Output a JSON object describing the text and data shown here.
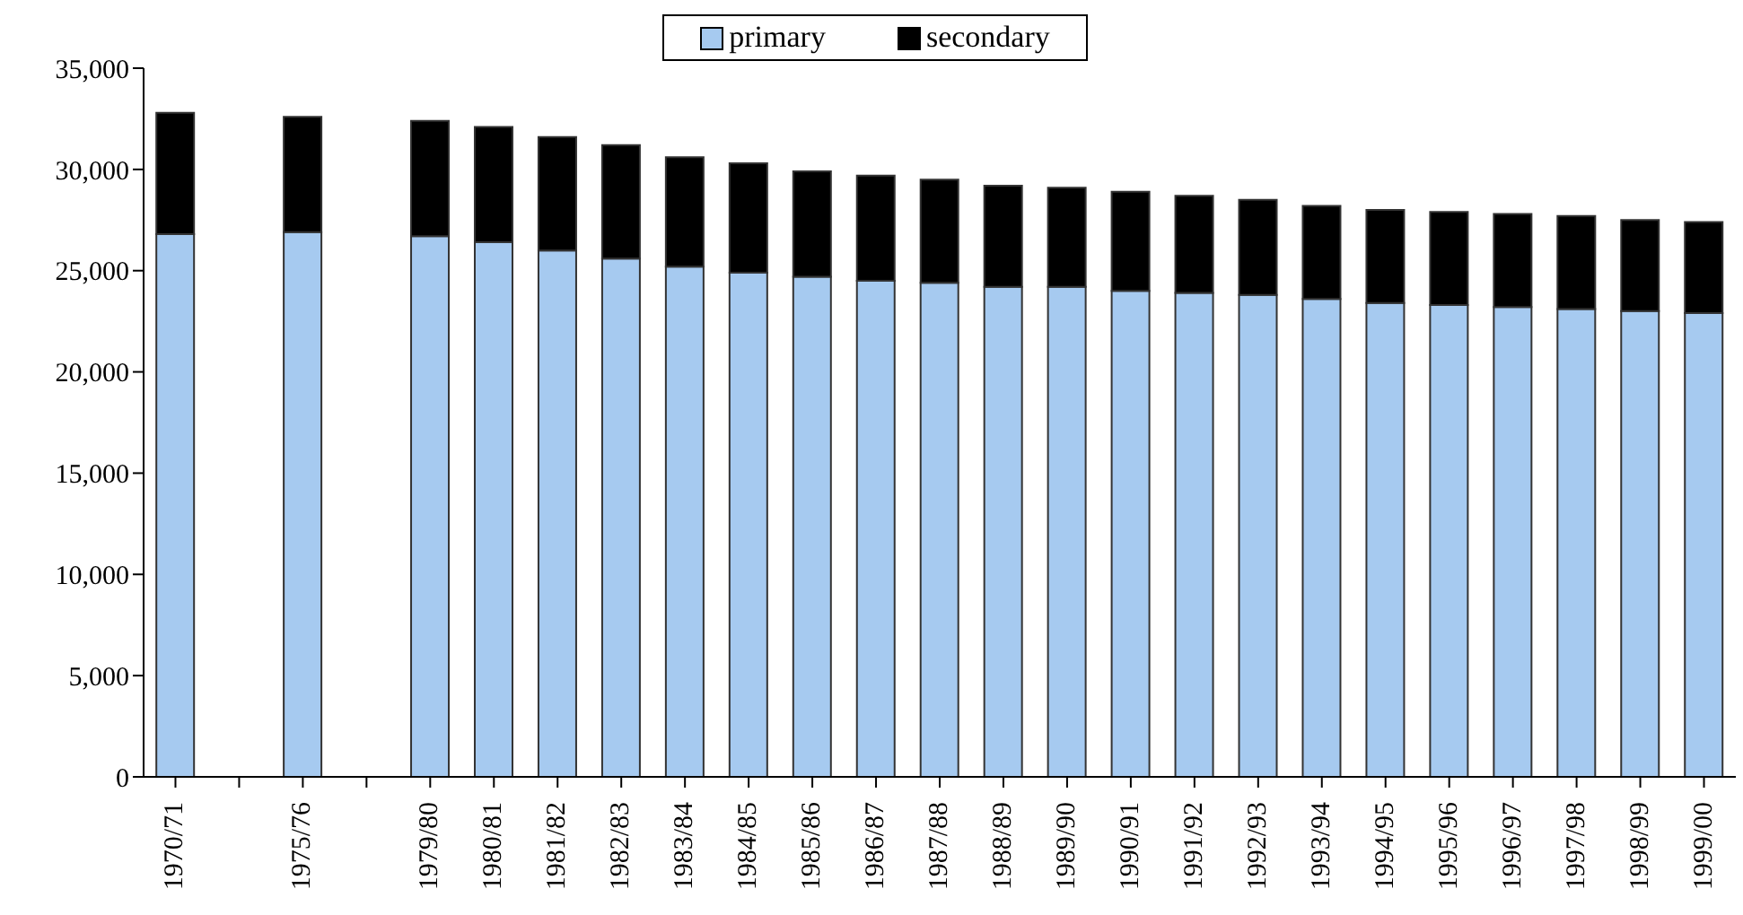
{
  "chart_data": {
    "type": "bar",
    "stacked": true,
    "legend": "top",
    "categories": [
      "1970/71",
      null,
      "1975/76",
      null,
      "1979/80",
      "1980/81",
      "1981/82",
      "1982/83",
      "1983/84",
      "1984/85",
      "1985/86",
      "1986/87",
      "1987/88",
      "1988/89",
      "1989/90",
      "1990/91",
      "1991/92",
      "1992/93",
      "1993/94",
      "1994/95",
      "1995/96",
      "1996/97",
      "1997/98",
      "1998/99",
      "1999/00"
    ],
    "series": [
      {
        "name": "primary",
        "color": "#a6caf0",
        "values": [
          26800,
          null,
          26900,
          null,
          26700,
          26400,
          26000,
          25600,
          25200,
          24900,
          24700,
          24500,
          24400,
          24200,
          24200,
          24000,
          23900,
          23800,
          23600,
          23400,
          23300,
          23200,
          23100,
          23000,
          22900
        ]
      },
      {
        "name": "secondary",
        "color": "#000000",
        "values": [
          6000,
          null,
          5700,
          null,
          5700,
          5700,
          5600,
          5600,
          5400,
          5400,
          5200,
          5200,
          5100,
          5000,
          4900,
          4900,
          4800,
          4700,
          4600,
          4600,
          4600,
          4600,
          4600,
          4500,
          4500
        ]
      }
    ],
    "ylim": [
      0,
      35000
    ],
    "yticks": [
      0,
      {
        "value": 5000,
        "label": "5,000"
      },
      {
        "value": 10000,
        "label": "10,000"
      },
      {
        "value": 15000,
        "label": "15,000"
      },
      {
        "value": 20000,
        "label": "20,000"
      },
      {
        "value": 25000,
        "label": "25,000"
      },
      {
        "value": 30000,
        "label": "30,000"
      },
      {
        "value": 35000,
        "label": "35,000"
      }
    ],
    "grid": false
  }
}
